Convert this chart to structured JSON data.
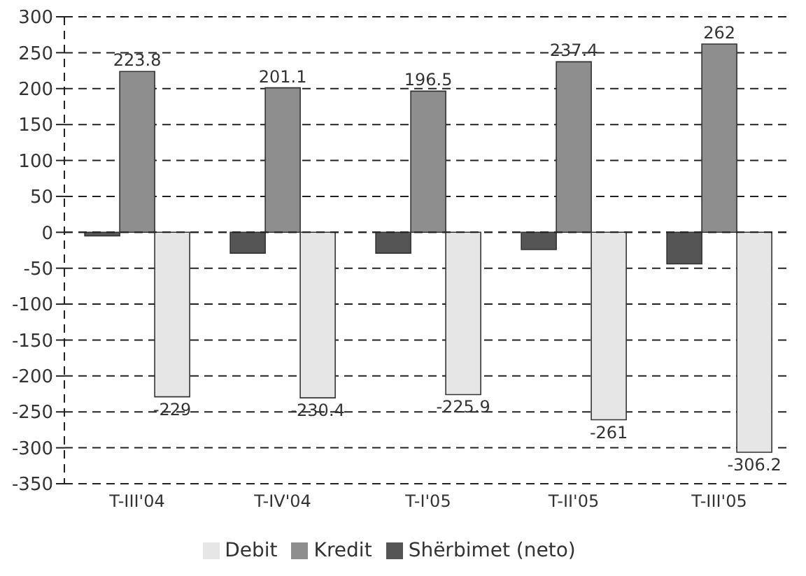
{
  "chart_data": {
    "type": "bar",
    "categories": [
      "T-III'04",
      "T-IV'04",
      "T-I'05",
      "T-II'05",
      "T-III'05"
    ],
    "series": [
      {
        "name": "Shërbimet (neto)",
        "color": "#555555",
        "values": [
          -5,
          -29,
          -29,
          -24,
          -44
        ]
      },
      {
        "name": "Kredit",
        "color": "#8e8e8e",
        "values": [
          223.8,
          201.1,
          196.5,
          237.4,
          262
        ],
        "value_labels": [
          "223.8",
          "201.1",
          "196.5",
          "237.4",
          "262"
        ]
      },
      {
        "name": "Debit",
        "color": "#e6e6e6",
        "values": [
          -229,
          -230.4,
          -225.9,
          -261,
          -306.2
        ],
        "value_labels": [
          "-229",
          "-230.4",
          "-225.9",
          "-261",
          "-306.2"
        ]
      }
    ],
    "ylim": [
      -350,
      300
    ],
    "yticks": [
      -350,
      -300,
      -250,
      -200,
      -150,
      -100,
      -50,
      0,
      50,
      100,
      150,
      200,
      250,
      300
    ],
    "grid": "y",
    "legend": "bottom"
  }
}
